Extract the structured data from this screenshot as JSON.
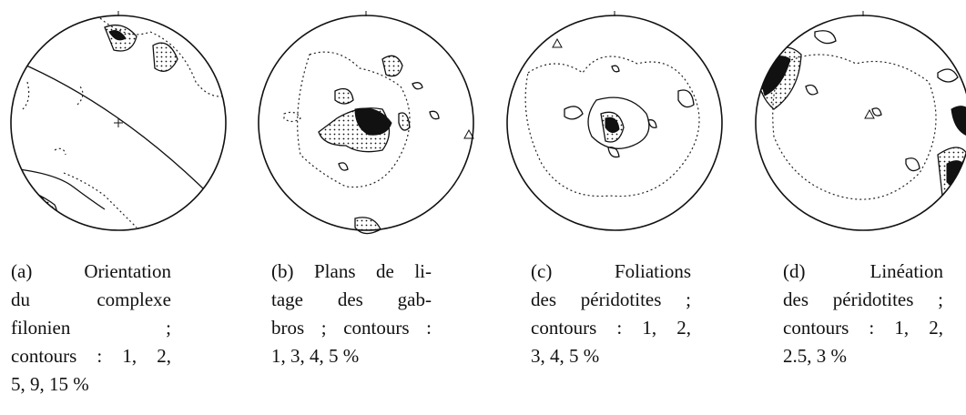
{
  "figures": [
    {
      "caption_lines": [
        "(a) Orientation",
        "du complexe",
        "filonien ;",
        "contours : 1, 2,",
        "5, 9, 15 %"
      ]
    },
    {
      "caption_lines": [
        "(b) Plans de li-",
        "tage des gab-",
        "bros ; contours :",
        "1, 3, 4, 5 %"
      ]
    },
    {
      "caption_lines": [
        "(c) Foliations",
        "des péridotites ;",
        "contours : 1, 2,",
        "3, 4, 5 %"
      ]
    },
    {
      "caption_lines": [
        "(d) Linéation",
        "des péridotites ;",
        "contours : 1, 2,",
        "2.5, 3 %"
      ]
    }
  ]
}
